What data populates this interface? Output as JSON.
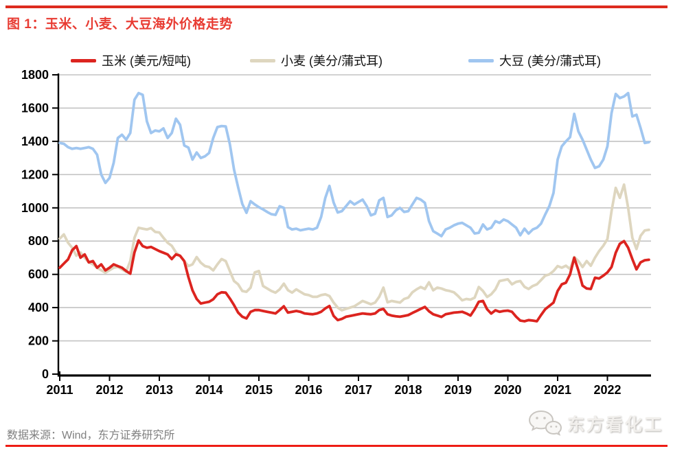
{
  "header": {
    "top_rule_color": "#dd2b1e",
    "bottom_rule_color": "#ee1c14"
  },
  "footer": {
    "source": "数据来源：Wind，东方证券研究所"
  },
  "watermark": {
    "icon": "wechat-chat-bubbles-icon",
    "label": "东方看化工"
  },
  "chart_data": {
    "type": "line",
    "title": "图 1：玉米、小麦、大豆海外价格走势",
    "title_color": "#e83b32",
    "xlabel": "",
    "ylabel": "",
    "ylim": [
      0,
      1800
    ],
    "y_ticks": [
      0,
      200,
      400,
      600,
      800,
      1000,
      1200,
      1400,
      1600,
      1800
    ],
    "x_tick_labels": [
      "2011",
      "2012",
      "2013",
      "2014",
      "2015",
      "2016",
      "2017",
      "2018",
      "2019",
      "2020",
      "2021",
      "2022"
    ],
    "x_monthly_start": "2011-01",
    "x_interval": "month",
    "grid": "horizontal",
    "grid_color": "#c3c3c3",
    "axis_color": "#000000",
    "legend_position": "top",
    "series": [
      {
        "name": "小麦 (美分/蒲式耳)",
        "legend_index": 1,
        "color": "#ded6bf",
        "values": [
          815,
          840,
          790,
          760,
          712,
          732,
          700,
          672,
          660,
          640,
          625,
          610,
          625,
          640,
          645,
          630,
          615,
          680,
          820,
          880,
          875,
          870,
          878,
          855,
          852,
          820,
          790,
          772,
          732,
          710,
          680,
          650,
          660,
          704,
          670,
          650,
          644,
          624,
          660,
          692,
          680,
          620,
          560,
          540,
          500,
          495,
          520,
          612,
          620,
          530,
          515,
          500,
          490,
          510,
          544,
          505,
          490,
          510,
          495,
          480,
          475,
          465,
          465,
          475,
          480,
          470,
          430,
          400,
          384,
          392,
          400,
          408,
          424,
          440,
          430,
          420,
          430,
          465,
          520,
          432,
          440,
          435,
          430,
          452,
          460,
          492,
          510,
          524,
          512,
          552,
          504,
          520,
          515,
          505,
          500,
          492,
          470,
          444,
          452,
          448,
          460,
          524,
          500,
          464,
          480,
          510,
          560,
          565,
          570,
          540,
          555,
          560,
          525,
          512,
          530,
          540,
          565,
          592,
          600,
          620,
          650,
          640,
          652,
          632,
          704,
          680,
          644,
          680,
          652,
          700,
          740,
          772,
          812,
          980,
          1120,
          1060,
          1140,
          1000,
          820,
          752,
          832,
          864,
          868
        ]
      },
      {
        "name": "大豆 (美分/蒲式耳)",
        "legend_index": 2,
        "color": "#a0c6f0",
        "values": [
          1390,
          1385,
          1365,
          1355,
          1360,
          1355,
          1360,
          1365,
          1355,
          1320,
          1200,
          1150,
          1180,
          1270,
          1420,
          1440,
          1410,
          1450,
          1650,
          1690,
          1680,
          1520,
          1450,
          1465,
          1460,
          1478,
          1420,
          1450,
          1536,
          1500,
          1375,
          1363,
          1290,
          1333,
          1300,
          1310,
          1330,
          1420,
          1486,
          1492,
          1490,
          1383,
          1230,
          1123,
          1024,
          970,
          1040,
          1020,
          1004,
          991,
          975,
          962,
          958,
          1010,
          1000,
          884,
          870,
          875,
          865,
          870,
          875,
          870,
          880,
          945,
          1060,
          1132,
          1032,
          972,
          980,
          1010,
          1040,
          1020,
          1035,
          1050,
          1010,
          955,
          965,
          1045,
          1060,
          945,
          955,
          985,
          1000,
          975,
          980,
          1020,
          1060,
          1050,
          1030,
          920,
          860,
          845,
          830,
          870,
          880,
          895,
          905,
          910,
          895,
          880,
          846,
          850,
          900,
          870,
          880,
          920,
          910,
          930,
          920,
          900,
          880,
          835,
          875,
          845,
          870,
          880,
          905,
          960,
          1010,
          1090,
          1290,
          1370,
          1400,
          1425,
          1565,
          1460,
          1410,
          1350,
          1290,
          1240,
          1250,
          1290,
          1370,
          1570,
          1685,
          1660,
          1670,
          1690,
          1550,
          1560,
          1480,
          1390,
          1395
        ]
      },
      {
        "name": "玉米 (美元/短吨)",
        "legend_index": 0,
        "color": "#dc241f",
        "values": [
          640,
          665,
          690,
          745,
          770,
          700,
          720,
          672,
          680,
          640,
          660,
          624,
          640,
          660,
          650,
          640,
          620,
          604,
          732,
          804,
          770,
          760,
          765,
          752,
          740,
          730,
          720,
          692,
          720,
          712,
          680,
          584,
          504,
          452,
          425,
          430,
          435,
          450,
          480,
          492,
          490,
          455,
          415,
          370,
          345,
          335,
          375,
          385,
          385,
          380,
          375,
          370,
          365,
          385,
          408,
          370,
          375,
          380,
          375,
          365,
          362,
          360,
          365,
          375,
          395,
          410,
          350,
          325,
          332,
          345,
          350,
          355,
          360,
          365,
          362,
          360,
          365,
          385,
          392,
          360,
          352,
          348,
          345,
          350,
          355,
          368,
          380,
          392,
          404,
          378,
          360,
          352,
          344,
          360,
          365,
          370,
          372,
          375,
          365,
          352,
          390,
          435,
          440,
          390,
          364,
          384,
          375,
          380,
          382,
          375,
          345,
          322,
          318,
          325,
          322,
          318,
          355,
          390,
          410,
          430,
          500,
          540,
          550,
          600,
          700,
          624,
          532,
          515,
          512,
          580,
          575,
          592,
          612,
          644,
          730,
          784,
          800,
          760,
          692,
          630,
          672,
          685,
          688
        ]
      }
    ]
  }
}
